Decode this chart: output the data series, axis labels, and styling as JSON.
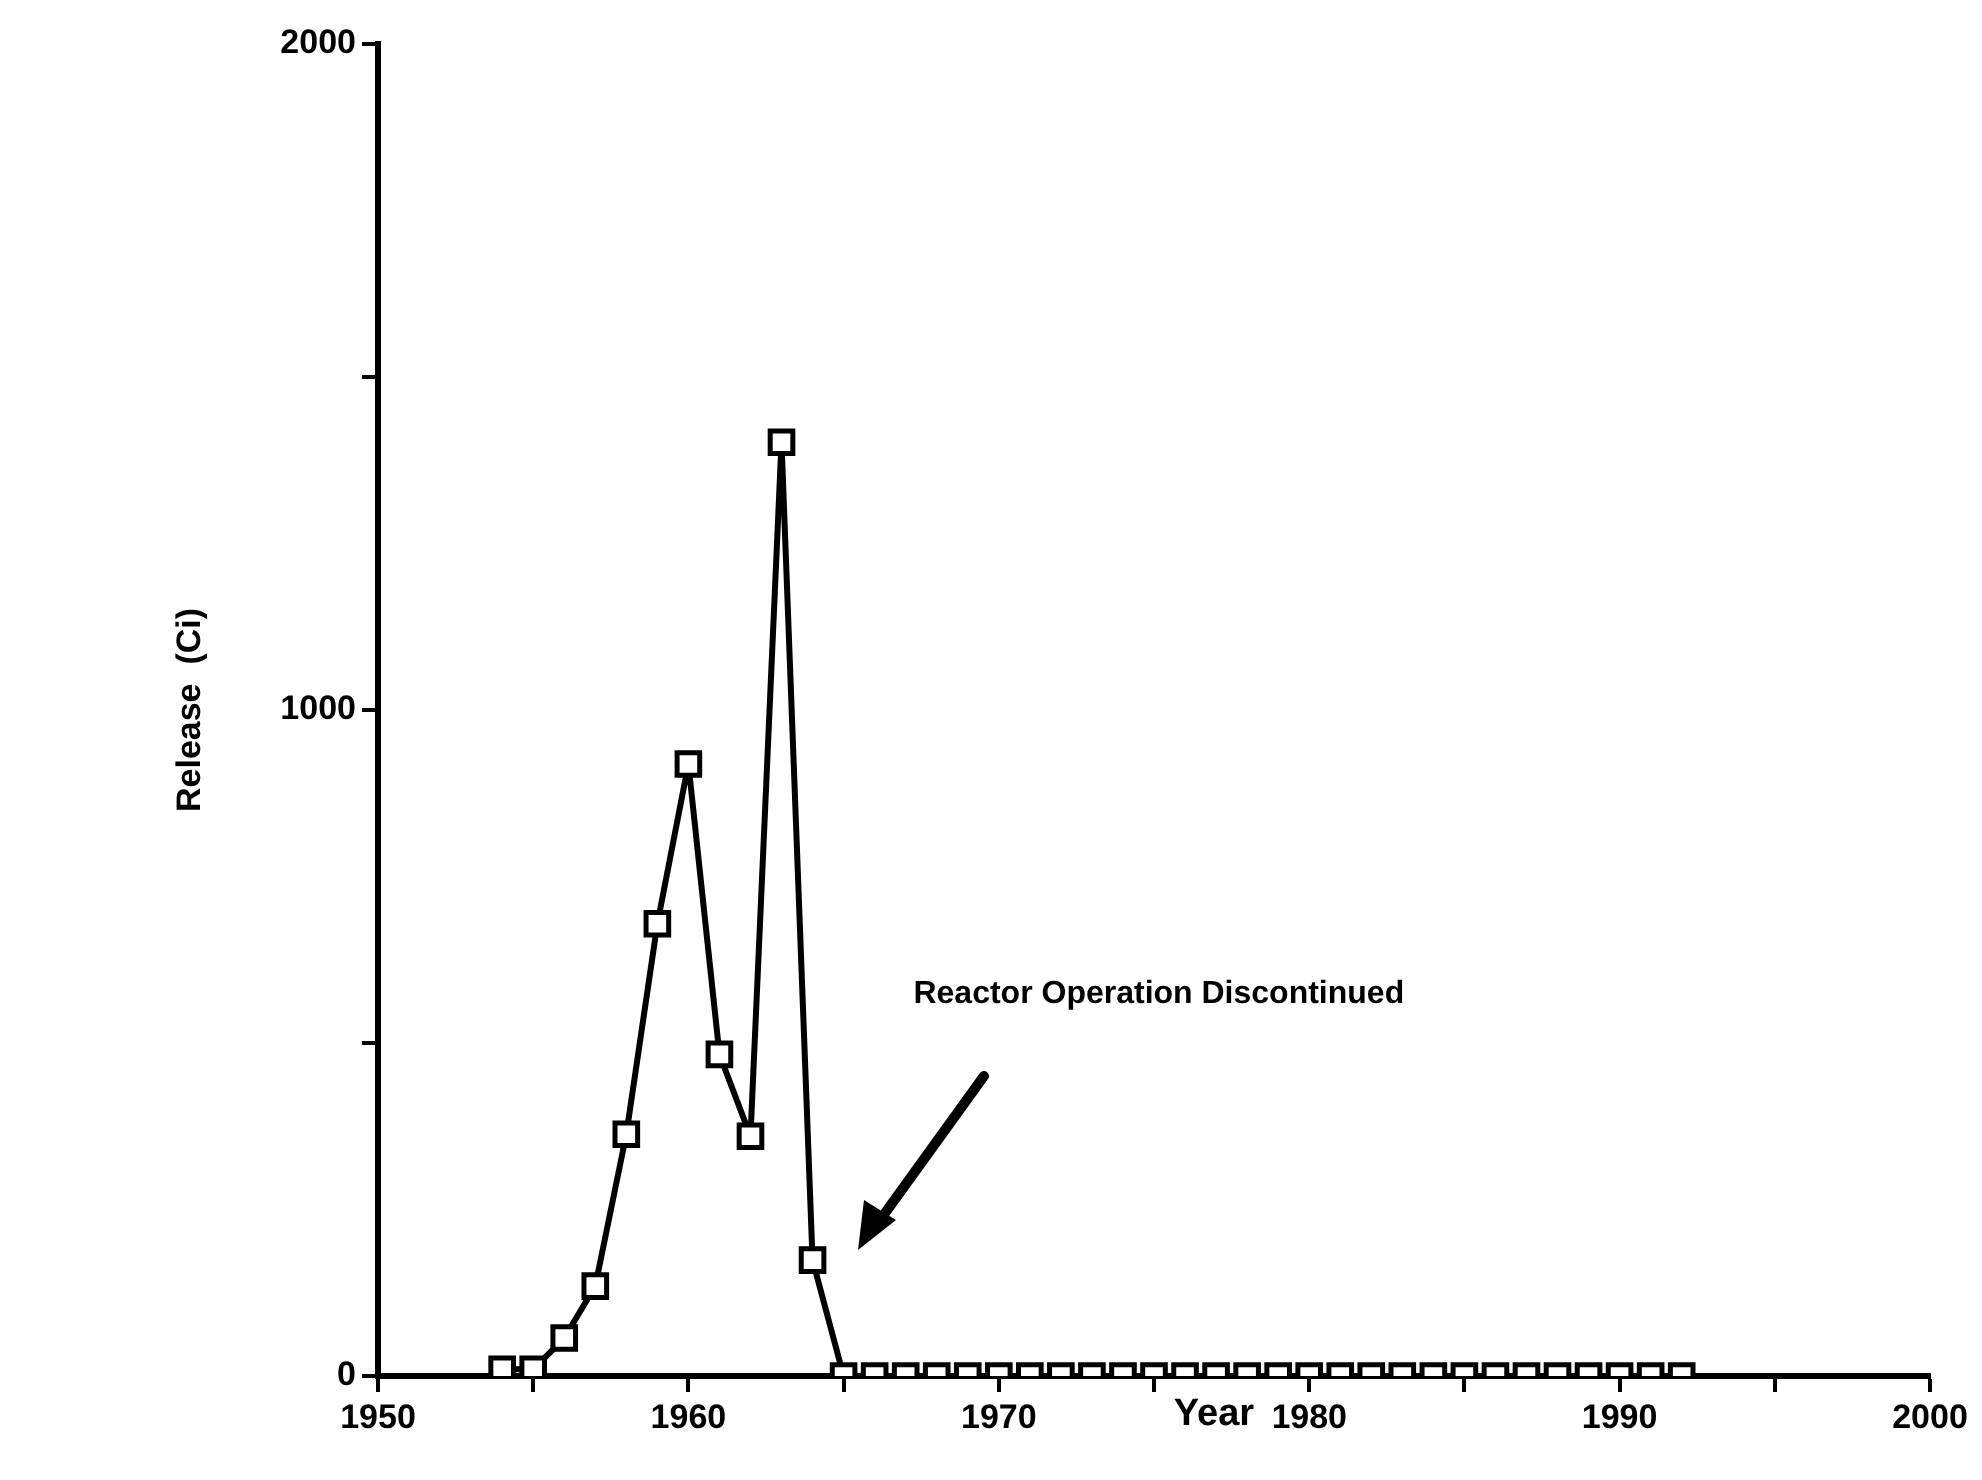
{
  "chart_data": {
    "type": "line",
    "xlabel": "Year",
    "ylabel": "Release  (Ci)",
    "x": [
      1954,
      1955,
      1956,
      1957,
      1958,
      1959,
      1960,
      1961,
      1962,
      1963,
      1964,
      1965,
      1966,
      1967,
      1968,
      1969,
      1970,
      1971,
      1972,
      1973,
      1974,
      1975,
      1976,
      1977,
      1978,
      1979,
      1980,
      1981,
      1982,
      1983,
      1984,
      1985,
      1986,
      1987,
      1988,
      1989,
      1990,
      1991,
      1992
    ],
    "series": [
      {
        "color": "#000000",
        "values": [
          10,
          10,
          57,
          135,
          363,
          679,
          919,
          483,
          360,
          1402,
          174,
          0,
          0,
          0,
          0,
          0,
          0,
          0,
          0,
          0,
          0,
          0,
          0,
          0,
          0,
          0,
          0,
          0,
          0,
          0,
          0,
          0,
          0,
          0,
          0,
          0,
          0,
          0,
          0
        ]
      }
    ],
    "xlim": [
      1950,
      2000
    ],
    "xticks": [
      1950,
      {
        "value": 1955,
        "label": null
      },
      1960,
      {
        "value": 1965,
        "label": null
      },
      1970,
      {
        "value": 1975,
        "label": null
      },
      1980,
      {
        "value": 1985,
        "label": null
      },
      1990,
      {
        "value": 1995,
        "label": null
      },
      2000
    ],
    "ylim": [
      0,
      2000
    ],
    "yticks": [
      0,
      {
        "value": 500,
        "label": null
      },
      1000,
      {
        "value": 1500,
        "label": null
      },
      2000
    ],
    "annotations": [
      "Reactor Operation Discontinued"
    ],
    "marker": "square",
    "line_style": "solid",
    "grid": false,
    "legend": false
  }
}
